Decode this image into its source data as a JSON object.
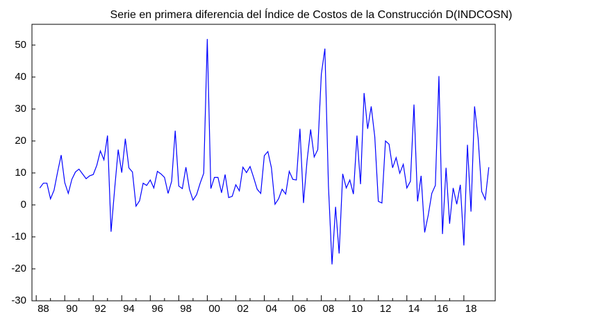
{
  "chart_data": {
    "type": "line",
    "title": "Serie en primera diferencia del Índice de Costos de la Construcción  D(INDCOSN)",
    "color": "#0000ff",
    "x": [
      1988.25,
      1988.5,
      1988.75,
      1989,
      1989.25,
      1989.5,
      1989.75,
      1990,
      1990.25,
      1990.5,
      1990.75,
      1991,
      1991.25,
      1991.5,
      1991.75,
      1992,
      1992.25,
      1992.5,
      1992.75,
      1993,
      1993.25,
      1993.5,
      1993.75,
      1994,
      1994.25,
      1994.5,
      1994.75,
      1995,
      1995.25,
      1995.5,
      1995.75,
      1996,
      1996.25,
      1996.5,
      1996.75,
      1997,
      1997.25,
      1997.5,
      1997.75,
      1998,
      1998.25,
      1998.5,
      1998.75,
      1999,
      1999.25,
      1999.5,
      1999.75,
      2000,
      2000.25,
      2000.5,
      2000.75,
      2001,
      2001.25,
      2001.5,
      2001.75,
      2002,
      2002.25,
      2002.5,
      2002.75,
      2003,
      2003.25,
      2003.5,
      2003.75,
      2004,
      2004.25,
      2004.5,
      2004.75,
      2005,
      2005.25,
      2005.5,
      2005.75,
      2006,
      2006.25,
      2006.5,
      2006.75,
      2007,
      2007.25,
      2007.5,
      2007.75,
      2008,
      2008.25,
      2008.5,
      2008.75,
      2009,
      2009.25,
      2009.5,
      2009.75,
      2010,
      2010.25,
      2010.5,
      2010.75,
      2011,
      2011.25,
      2011.5,
      2011.75,
      2012,
      2012.25,
      2012.5,
      2012.75,
      2013,
      2013.25,
      2013.5,
      2013.75,
      2014,
      2014.25,
      2014.5,
      2014.75,
      2015,
      2015.25,
      2015.5,
      2015.75,
      2016,
      2016.25,
      2016.5,
      2016.75,
      2017,
      2017.25,
      2017.5,
      2017.75,
      2018,
      2018.25,
      2018.5,
      2018.75,
      2019,
      2019.25,
      2019.5,
      2019.75
    ],
    "values": [
      5.3,
      6.8,
      6.8,
      1.9,
      4.6,
      10.3,
      15.6,
      7.0,
      3.6,
      8.0,
      10.3,
      11.2,
      9.7,
      8.2,
      9.1,
      9.5,
      12.4,
      16.9,
      14.1,
      21.7,
      -8.4,
      4.9,
      17.3,
      10.1,
      20.7,
      11.6,
      10.3,
      -0.4,
      1.3,
      6.8,
      6.1,
      7.8,
      5.3,
      10.5,
      9.7,
      8.6,
      3.6,
      7.4,
      23.2,
      5.9,
      5.1,
      11.8,
      4.9,
      1.5,
      3.2,
      6.8,
      9.9,
      51.9,
      5.1,
      8.6,
      8.6,
      3.8,
      9.5,
      2.3,
      2.7,
      6.3,
      4.4,
      11.8,
      10.1,
      12.0,
      8.6,
      4.9,
      3.6,
      15.4,
      16.7,
      11.6,
      0.2,
      1.9,
      4.9,
      3.4,
      10.5,
      8.0,
      7.8,
      23.8,
      0.6,
      13.9,
      23.6,
      15.0,
      17.3,
      40.9,
      48.9,
      5.9,
      -18.6,
      -0.6,
      -15.2,
      9.7,
      5.3,
      7.8,
      3.4,
      21.7,
      6.5,
      35.0,
      23.8,
      30.8,
      21.3,
      1.1,
      0.6,
      20.0,
      19.0,
      11.6,
      14.8,
      9.9,
      12.7,
      5.3,
      7.4,
      31.4,
      1.1,
      9.1,
      -8.6,
      -3.2,
      3.6,
      6.1,
      40.3,
      -9.1,
      11.6,
      -5.9,
      5.3,
      0.2,
      6.3,
      -12.7,
      18.8,
      -2.1,
      30.8,
      20.9,
      4.2,
      1.7,
      11.8
    ],
    "xlim": [
      1987.7,
      2020.2
    ],
    "xticks": [
      {
        "value": 1988,
        "label": "88"
      },
      {
        "value": 1990,
        "label": "90"
      },
      {
        "value": 1992,
        "label": "92"
      },
      {
        "value": 1994,
        "label": "94"
      },
      {
        "value": 1996,
        "label": "96"
      },
      {
        "value": 1998,
        "label": "98"
      },
      {
        "value": 2000,
        "label": "00"
      },
      {
        "value": 2002,
        "label": "02"
      },
      {
        "value": 2004,
        "label": "04"
      },
      {
        "value": 2006,
        "label": "06"
      },
      {
        "value": 2008,
        "label": "08"
      },
      {
        "value": 2010,
        "label": "10"
      },
      {
        "value": 2012,
        "label": "12"
      },
      {
        "value": 2014,
        "label": "14"
      },
      {
        "value": 2016,
        "label": "16"
      },
      {
        "value": 2018,
        "label": "18"
      }
    ],
    "ylim": [
      -30,
      56.5
    ],
    "yticks": [
      -30,
      -20,
      -10,
      0,
      10,
      20,
      30,
      40,
      50
    ]
  }
}
